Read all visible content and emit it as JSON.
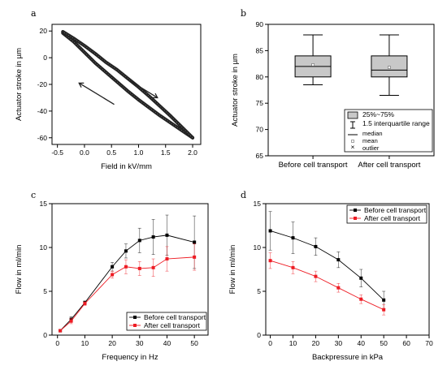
{
  "chart_data": [
    {
      "panel": "a",
      "type": "line",
      "xlabel": "Field in kV/mm",
      "ylabel": "Actuator stroke in µm",
      "xlim": [
        -0.6,
        2.15
      ],
      "ylim": [
        -65,
        25
      ],
      "xticks": [
        "-0.5",
        "0.0",
        "0.5",
        "1.0",
        "1.5",
        "2.0"
      ],
      "yticks": [
        "20",
        "0",
        "-20",
        "-40",
        "-60"
      ],
      "series": [
        {
          "branch": "loading",
          "x": [
            -0.4,
            -0.2,
            0.0,
            0.2,
            0.4,
            0.6,
            0.8,
            1.0,
            1.2,
            1.4,
            1.6,
            1.8,
            2.0
          ],
          "y": [
            18.5,
            12,
            4,
            -4,
            -11,
            -18,
            -25,
            -31.5,
            -37.5,
            -43.5,
            -49,
            -54.5,
            -60
          ]
        },
        {
          "branch": "unloading",
          "x": [
            2.0,
            1.8,
            1.6,
            1.4,
            1.2,
            1.0,
            0.8,
            0.6,
            0.4,
            0.2,
            0.0,
            -0.2,
            -0.4
          ],
          "y": [
            -60,
            -52,
            -44,
            -36.5,
            -29,
            -22,
            -15.5,
            -9,
            -3.5,
            3,
            9,
            14.5,
            19.5
          ]
        }
      ],
      "arrows": [
        "loading: toward +2.0 kV/mm",
        "unloading: toward -0.4 kV/mm"
      ],
      "color": "#222222"
    },
    {
      "panel": "b",
      "type": "box",
      "categories": [
        "Before cell transport",
        "After cell transport"
      ],
      "ylabel": "Actuator stroke in µm",
      "ylim": [
        65,
        90
      ],
      "yticks": [
        "65",
        "70",
        "75",
        "80",
        "85",
        "90"
      ],
      "boxes": [
        {
          "whisker_low": 78.5,
          "q1": 80,
          "median": 82,
          "q3": 84,
          "whisker_high": 88,
          "mean": 82.3
        },
        {
          "whisker_low": 76.5,
          "q1": 80,
          "median": 81.3,
          "q3": 84,
          "whisker_high": 88,
          "mean": 81.8
        }
      ],
      "legend": [
        "25%~75%",
        "1.5 interquartile range",
        "median",
        "mean",
        "outlier"
      ],
      "box_color": "#c8c8c8"
    },
    {
      "panel": "c",
      "type": "line",
      "xlabel": "Frequency in Hz",
      "ylabel": "Flow in ml/min",
      "xlim": [
        -2,
        55
      ],
      "ylim": [
        0,
        15
      ],
      "xticks": [
        "0",
        "10",
        "20",
        "30",
        "40",
        "50"
      ],
      "yticks": [
        "0",
        "5",
        "10",
        "15"
      ],
      "series": [
        {
          "name": "Before cell transport",
          "color": "#000000",
          "x": [
            1,
            5,
            10,
            20,
            25,
            30,
            35,
            40,
            50
          ],
          "y": [
            0.5,
            1.8,
            3.7,
            7.8,
            9.6,
            10.8,
            11.2,
            11.4,
            10.6
          ],
          "err": [
            0.1,
            0.3,
            0.2,
            0.5,
            0.8,
            1.4,
            2.0,
            2.3,
            3.0
          ]
        },
        {
          "name": "After cell transport",
          "color": "#ee1c24",
          "x": [
            1,
            5,
            10,
            20,
            25,
            30,
            35,
            40,
            50
          ],
          "y": [
            0.5,
            1.6,
            3.6,
            6.9,
            7.8,
            7.6,
            7.7,
            8.7,
            8.9
          ],
          "err": [
            0.1,
            0.3,
            0.2,
            0.4,
            0.8,
            0.8,
            1.0,
            1.4,
            1.5
          ]
        }
      ]
    },
    {
      "panel": "d",
      "type": "line",
      "xlabel": "Backpressure in kPa",
      "ylabel": "Flow in ml/min",
      "xlim": [
        -2,
        70
      ],
      "ylim": [
        0,
        15
      ],
      "xticks": [
        "0",
        "10",
        "20",
        "30",
        "40",
        "50",
        "60",
        "70"
      ],
      "yticks": [
        "0",
        "5",
        "10",
        "15"
      ],
      "series": [
        {
          "name": "Before cell transport",
          "color": "#000000",
          "x": [
            0,
            10,
            20,
            30,
            40,
            50
          ],
          "y": [
            11.9,
            11.1,
            10.1,
            8.6,
            6.5,
            4.0
          ],
          "err": [
            2.2,
            1.8,
            1.0,
            0.9,
            1.0,
            1.0
          ]
        },
        {
          "name": "After cell transport",
          "color": "#ee1c24",
          "x": [
            0,
            10,
            20,
            30,
            40,
            50
          ],
          "y": [
            8.5,
            7.7,
            6.7,
            5.4,
            4.1,
            2.9
          ],
          "err": [
            0.9,
            0.7,
            0.6,
            0.5,
            0.5,
            0.6
          ]
        }
      ]
    }
  ]
}
